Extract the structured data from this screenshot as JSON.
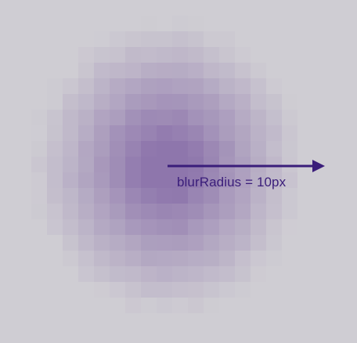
{
  "diagram": {
    "label": "blurRadius = 10px",
    "colors": {
      "background": "#cfcdd3",
      "blur_core": "#8e76ac",
      "arrow": "#3a1d7a",
      "label": "#3a1d7a"
    }
  }
}
